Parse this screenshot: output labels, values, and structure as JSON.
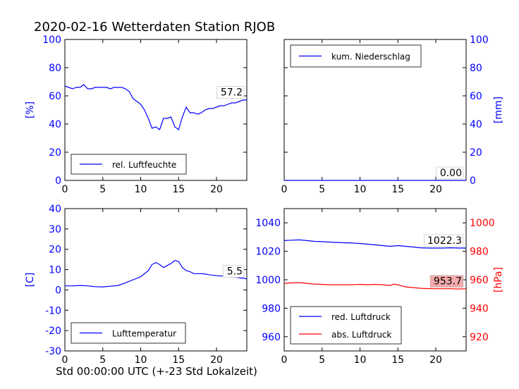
{
  "title": "2020-02-16 Wetterdaten Station RJOB",
  "footer_xlabel": "Std 00:00:00 UTC (+-23 Std Lokalzeit)",
  "colors": {
    "blue": "#0000ff",
    "red": "#ff0000",
    "axis": "#000000",
    "value_box_red": "#f4aaaa"
  },
  "chart_data": [
    {
      "type": "line",
      "id": "humidity",
      "ylabel": "[%]",
      "ylabel_side": "left",
      "ylim": [
        0,
        100
      ],
      "yticks": [
        0,
        20,
        40,
        60,
        80,
        100
      ],
      "xlim": [
        0,
        24
      ],
      "xticks": [
        0,
        5,
        10,
        15,
        20
      ],
      "legend_position": "lower-left",
      "series": [
        {
          "name": "rel. Luftfeuchte",
          "color": "#0000ff",
          "x": [
            0,
            0.5,
            1,
            1.5,
            2,
            2.5,
            3,
            3.5,
            4,
            4.5,
            5,
            5.5,
            6,
            6.5,
            7,
            7.5,
            8,
            8.5,
            9,
            9.5,
            10,
            10.5,
            11,
            11.5,
            12,
            12.5,
            13,
            13.5,
            14,
            14.5,
            15,
            15.5,
            16,
            16.5,
            17,
            17.5,
            18,
            18.5,
            19,
            19.5,
            20,
            20.5,
            21,
            21.5,
            22,
            22.5,
            23,
            23.5,
            24
          ],
          "values": [
            67,
            66,
            65,
            66,
            66,
            68,
            65,
            65,
            66,
            66,
            66,
            66,
            65,
            66,
            66,
            66,
            65,
            63,
            58,
            56,
            54,
            50,
            44,
            37,
            38,
            36,
            44,
            44,
            45,
            38,
            36,
            45,
            52,
            48,
            48,
            47,
            48,
            50,
            51,
            51,
            52,
            53,
            53,
            54,
            55,
            55,
            56,
            57,
            57.2
          ]
        }
      ],
      "value_label": "57.2"
    },
    {
      "type": "line",
      "id": "precip",
      "ylabel": "[mm]",
      "ylabel_side": "right",
      "ylim": [
        0,
        100
      ],
      "yticks": [
        0,
        20,
        40,
        60,
        80,
        100
      ],
      "xlim": [
        0,
        24
      ],
      "xticks": [
        0,
        5,
        10,
        15,
        20
      ],
      "legend_position": "upper-left",
      "series": [
        {
          "name": "kum. Niederschlag",
          "color": "#0000ff",
          "x": [
            0,
            24
          ],
          "values": [
            0,
            0
          ]
        }
      ],
      "value_label": "0.00"
    },
    {
      "type": "line",
      "id": "temperature",
      "ylabel": "[C]",
      "ylabel_side": "left",
      "ylim": [
        -30,
        40
      ],
      "yticks": [
        -30,
        -20,
        -10,
        0,
        10,
        20,
        30,
        40
      ],
      "xlim": [
        0,
        24
      ],
      "xticks": [
        0,
        5,
        10,
        15,
        20
      ],
      "legend_position": "lower-left",
      "series": [
        {
          "name": "Lufttemperatur",
          "color": "#0000ff",
          "x": [
            0,
            1,
            2,
            3,
            4,
            5,
            6,
            7,
            8,
            9,
            10,
            11,
            11.5,
            12,
            12.5,
            13,
            13.5,
            14,
            14.5,
            15,
            15.5,
            16,
            16.5,
            17,
            17.5,
            18,
            18.5,
            19,
            20,
            21,
            22,
            23,
            24
          ],
          "values": [
            2.0,
            2.0,
            2.2,
            2.0,
            1.6,
            1.5,
            1.8,
            2.2,
            3.5,
            5.0,
            6.5,
            9.5,
            12.5,
            13.5,
            12.5,
            11.0,
            12.0,
            13.0,
            14.5,
            14.0,
            11.0,
            9.5,
            9.0,
            8.0,
            8.0,
            8.0,
            7.8,
            7.5,
            7.0,
            6.8,
            6.5,
            6.0,
            5.5
          ]
        }
      ],
      "value_label": "5.5"
    },
    {
      "type": "line",
      "id": "pressure",
      "ylabel": "[hPa]",
      "ylabel_side": "right",
      "ylim_left": [
        950,
        1050
      ],
      "yticks_left": [
        960,
        980,
        1000,
        1020,
        1040
      ],
      "ylim_right": [
        910,
        1010
      ],
      "yticks_right": [
        920,
        940,
        960,
        980,
        1000
      ],
      "xlim": [
        0,
        24
      ],
      "xticks": [
        0,
        5,
        10,
        15,
        20
      ],
      "legend_position": "lower-left",
      "series": [
        {
          "name": "red. Luftdruck",
          "color": "#0000ff",
          "axis": "left",
          "x": [
            0,
            1,
            2,
            3,
            4,
            5,
            6,
            7,
            8,
            9,
            10,
            11,
            12,
            13,
            14,
            15,
            16,
            17,
            18,
            19,
            20,
            21,
            22,
            23,
            24
          ],
          "values": [
            1027.5,
            1027.8,
            1028.0,
            1027.5,
            1027.0,
            1026.8,
            1026.5,
            1026.2,
            1026.0,
            1025.8,
            1025.5,
            1025.0,
            1024.5,
            1024.0,
            1023.5,
            1024.0,
            1023.5,
            1023.0,
            1022.5,
            1022.3,
            1022.3,
            1022.3,
            1022.5,
            1022.3,
            1022.3
          ]
        },
        {
          "name": "abs. Luftdruck",
          "color": "#ff0000",
          "axis": "right",
          "x": [
            0,
            1,
            2,
            3,
            4,
            5,
            6,
            7,
            8,
            9,
            10,
            11,
            12,
            13,
            14,
            14.5,
            15,
            16,
            17,
            18,
            19,
            20,
            21,
            22,
            23,
            24
          ],
          "values": [
            957.5,
            957.8,
            958.0,
            957.5,
            957.0,
            956.8,
            956.5,
            956.5,
            956.5,
            956.5,
            956.8,
            956.5,
            956.8,
            956.5,
            956.0,
            957.0,
            956.5,
            955.0,
            954.5,
            954.0,
            953.8,
            953.7,
            953.7,
            953.7,
            953.5,
            953.7
          ]
        }
      ],
      "value_labels": [
        "1022.3",
        "953.7"
      ]
    }
  ]
}
